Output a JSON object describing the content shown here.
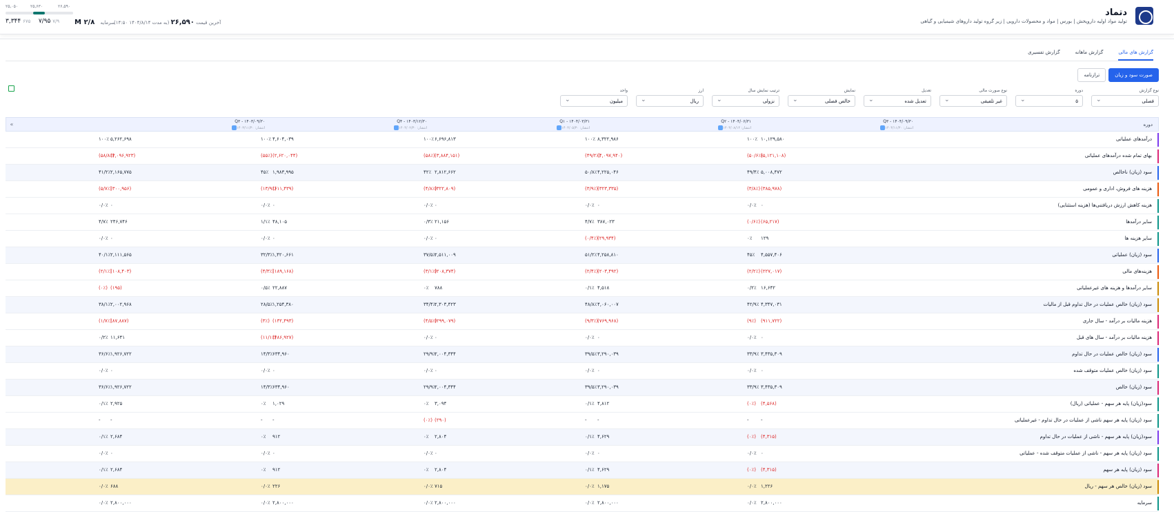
{
  "header": {
    "symbol": "دتماد",
    "company_line": "تولید مواد اولیه داروپخش  |  بورس  |  مواد و محصولات دارویی  |  زیر گروه تولید داروهای شیمیایی و گیاهی",
    "last_price_label": "آخرین قیمت",
    "last_price": "۲۶,۵۹۰",
    "last_price_note": "(به مدت ۱۴۰۴/۸/۱۴ ۱۴:۵۰)",
    "market_cap_label": "سرمایه",
    "market_cap": "۲/۸ M",
    "pe": "۷/۹۵",
    "pe_muted": "۷/۹",
    "eps": "۳,۳۴۴",
    "eps_muted": "۶۷۵",
    "range": {
      "low": "۲۵,۰۵۰",
      "mid": "۲۵,۶۳۰",
      "high": "۲۶,۵۹۰",
      "fill": 0.58
    }
  },
  "tabs": [
    "گزارش های مالی",
    "گزارش ماهانه",
    "گزارش تفسیری"
  ],
  "segment": {
    "active": "صورت سود و زیان",
    "other": "ترازنامه"
  },
  "filters": [
    {
      "label": "نوع گزارش",
      "value": "فصلی"
    },
    {
      "label": "دوره",
      "value": "۵"
    },
    {
      "label": "نوع صورت مالی",
      "value": "غیر تلفیقی"
    },
    {
      "label": "تعدیل",
      "value": "تعدیل شده"
    },
    {
      "label": "نمایش",
      "value": "خالص فصلی"
    },
    {
      "label": "ترتیب نمایش سال",
      "value": "نزولی"
    },
    {
      "label": "ارز",
      "value": "ریال"
    },
    {
      "label": "واحد",
      "value": "میلیون"
    }
  ],
  "table": {
    "period_label": "دوره",
    "columns": [
      {
        "title": "Q۳ - ۱۴۰۴/۰۹/۳۰",
        "sub": "انتشار: ۱۴۰۴/۱۱/۳۰"
      },
      {
        "title": "Q۲ - ۱۴۰۴/۰۶/۳۱",
        "sub": "انتشار: ۱۴۰۴/۰۸/۱۴"
      },
      {
        "title": "Q۱ - ۱۴۰۴/۰۳/۳۱",
        "sub": "انتشار: ۱۴۰۴/۰۵/۳۰"
      },
      {
        "title": "Q۴ - ۱۴۰۳/۱۲/۳۰",
        "sub": "انتشار: ۱۴۰۴/۰۲/۳۰"
      },
      {
        "title": "Q۳ - ۱۴۰۳/۰۹/۳۰",
        "sub": "انتشار: ۱۴۰۳/۱۱/۳۰"
      }
    ],
    "rows": [
      {
        "label": "درآمدهای عملیاتی",
        "accent": "#7c3aed",
        "vals": [
          "۱۰,۱۲۹,۵۸۰",
          "۸,۳۲۲,۹۸۶",
          "۶,۶۹۶,۸۱۳",
          "۴,۶۰۴,۰۳۹",
          "۵,۲۶۲,۶۹۸"
        ],
        "pcts": [
          "۱۰۰٪",
          "۱۰۰٪",
          "۱۰۰٪",
          "۱۰۰٪",
          "۱۰۰٪"
        ],
        "neg": false
      },
      {
        "label": "بهای تمام شده درآمدهای عملیاتی",
        "accent": "#db2777",
        "vals": [
          "(۵,۱۲۱,۱۰۸)",
          "(۴,۰۹۷,۹۴۰)",
          "(۳,۸۸۴,۱۵۱)",
          "(۲,۶۲۰,۰۴۴)",
          "(۳,۰۹۶,۹۲۳)"
        ],
        "pcts": [
          "(۵۰/۶٪)",
          "(۴۹/۲٪)",
          "(۵۸٪)",
          "(۵۵٪)",
          "(۵۸/۸٪)"
        ],
        "neg": true
      },
      {
        "label": "سود (زیان) ناخالص",
        "accent": "#2563eb",
        "vals": [
          "۵,۰۰۸,۴۷۲",
          "۴,۲۲۵,۰۴۶",
          "۲,۸۱۲,۶۶۲",
          "۱,۹۸۳,۹۹۵",
          "۲,۱۶۵,۷۷۵"
        ],
        "pcts": [
          "۴۹/۴٪",
          "۵۰/۸٪",
          "۴۲٪",
          "۴۵٪",
          "۴۱/۲٪"
        ],
        "neg": false,
        "tint": true
      },
      {
        "label": "هزینه های فروش، اداری و عمومی",
        "accent": "#ea580c",
        "vals": [
          "(۳۸۵,۹۷۸)",
          "(۳۲۳,۳۳۵)",
          "(۳۲۲,۸۰۹)",
          "(۶۱۱,۴۳۹)",
          "(۳۰۰,۹۵۶)"
        ],
        "pcts": [
          "(۳/۸٪)",
          "(۳/۹٪)",
          "(۴/۸٪)",
          "(۱۳/۹٪)",
          "(۵/۷٪)"
        ],
        "neg": true
      },
      {
        "label": "هزینه کاهش ارزش دریافتنی‌ها (هزینه استثنایی)",
        "accent": "#0d9488",
        "vals": [
          "۰",
          "۰",
          "۰",
          "۰",
          "۰"
        ],
        "pcts": [
          "۰/۰٪",
          "۰/۰٪",
          "۰/۰٪",
          "۰/۰٪",
          "۰/۰٪"
        ],
        "neg": false
      },
      {
        "label": "سایر درآمدها",
        "accent": "#0d9488",
        "vals": [
          "(۶۵,۲۱۷)",
          "۳۸۷,۰۲۳",
          "۲۱,۱۵۶",
          "۴۸,۱۰۵",
          "۲۴۶,۷۴۶"
        ],
        "pcts": [
          "(۰/۶٪)",
          "۴/۷٪",
          "۰/۳٪",
          "۱/۱٪",
          "۴/۷٪"
        ],
        "neg": "first"
      },
      {
        "label": "سایر هزینه ها",
        "accent": "#0d9488",
        "vals": [
          "۱۲۹",
          "(۲۹,۹۳۴)",
          "۰",
          "۰",
          "۰"
        ],
        "pcts": [
          "۰٪",
          "(۰/۴٪)",
          "۰/۰٪",
          "۰/۰٪",
          "۰/۰٪"
        ],
        "neg": "second"
      },
      {
        "label": "سود (زیان) عملیاتی",
        "accent": "#2563eb",
        "vals": [
          "۴,۵۵۷,۴۰۶",
          "۴,۲۵۸,۸۱۰",
          "۲,۵۱۱,۰۰۹",
          "۱,۴۲۰,۶۶۱",
          "۲,۱۱۱,۵۶۵"
        ],
        "pcts": [
          "۴۵٪",
          "۵۱/۲٪",
          "۳۷/۵٪",
          "۳۲/۳٪",
          "۴۰/۱٪"
        ],
        "neg": false,
        "tint": true
      },
      {
        "label": "هزینه‌های مالی",
        "accent": "#ea580c",
        "vals": [
          "(۲۲۷,۰۱۷)",
          "(۲۰۳,۴۹۲)",
          "(۲۰۸,۳۷۴)",
          "(۱۸۹,۱۶۸)",
          "(۱۰۸,۴۰۳)"
        ],
        "pcts": [
          "(۲/۲٪)",
          "(۲/۴٪)",
          "(۳/۱٪)",
          "(۴/۳٪)",
          "(۲/۱٪)"
        ],
        "neg": true
      },
      {
        "label": "سایر درآمدها و هزینه های غیرعملیاتی",
        "accent": "#ca8a04",
        "vals": [
          "۱۶,۶۴۲",
          "۴,۵۱۸",
          "۷۸۸",
          "۲۲,۸۸۷",
          "(۱۹۵)"
        ],
        "pcts": [
          "۰/۲٪",
          "۰/۱٪",
          "۰٪",
          "۰/۵٪",
          "(۰٪)"
        ],
        "neg": "last"
      },
      {
        "label": "سود (زیان) خالص عملیات در حال تداوم قبل از مالیات",
        "accent": "#ca8a04",
        "vals": [
          "۴,۳۴۷,۰۳۱",
          "۴,۰۶۰,۰۰۷",
          "۲,۳۰۳,۴۲۳",
          "۱,۲۵۴,۳۸۰",
          "۲,۰۰۲,۹۶۸"
        ],
        "pcts": [
          "۴۲/۹٪",
          "۴۸/۸٪",
          "۳۴/۴٪",
          "۲۸/۵٪",
          "۳۸/۱٪"
        ],
        "neg": false,
        "tint": true
      },
      {
        "label": "هزینه مالیات بر درآمد - سال جاری",
        "accent": "#db2777",
        "vals": [
          "(۹۱۱,۷۲۲)",
          "(۷۶۹,۹۶۸)",
          "(۲۹۹,۰۷۹)",
          "(۱۳۲,۴۹۳)",
          "(۸۷,۸۸۷)"
        ],
        "pcts": [
          "(۹٪)",
          "(۹/۳٪)",
          "(۴/۵٪)",
          "(۳٪)",
          "(۱/۷٪)"
        ],
        "neg": true
      },
      {
        "label": "هزینه مالیات بر درآمد - سال های قبل",
        "accent": "#db2777",
        "vals": [
          "۰",
          "۰",
          "۰",
          "(۴۸۶,۹۲۷)",
          "۱۱,۶۴۱"
        ],
        "pcts": [
          "۰/۰٪",
          "۰/۰٪",
          "۰/۰٪",
          "(۱۱/۱٪)",
          "۰/۲٪"
        ],
        "neg": "fourth"
      },
      {
        "label": "سود (زیان) خالص عملیات در حال تداوم",
        "accent": "#2563eb",
        "vals": [
          "۳,۴۳۵,۳۰۹",
          "۳,۲۹۰,۰۳۹",
          "۲,۰۰۴,۳۴۴",
          "۶۳۴,۹۶۰",
          "۱,۹۲۶,۷۲۲"
        ],
        "pcts": [
          "۳۳/۹٪",
          "۳۹/۵٪",
          "۲۹/۹٪",
          "۱۴/۳٪",
          "۳۶/۶٪"
        ],
        "neg": false,
        "tint": true
      },
      {
        "label": "سود (زیان) خالص عملیات متوقف شده",
        "accent": "#0d9488",
        "vals": [
          "۰",
          "۰",
          "۰",
          "۰",
          "۰"
        ],
        "pcts": [
          "۰/۰٪",
          "۰/۰٪",
          "۰/۰٪",
          "۰/۰٪",
          "۰/۰٪"
        ],
        "neg": false
      },
      {
        "label": "سود (زیان) خالص",
        "accent": "#db2777",
        "vals": [
          "۳,۴۳۵,۳۰۹",
          "۳,۲۹۰,۰۳۹",
          "۲,۰۰۴,۳۴۴",
          "۶۳۴,۹۶۰",
          "۱,۹۲۶,۷۲۲"
        ],
        "pcts": [
          "۳۳/۹٪",
          "۳۹/۵٪",
          "۲۹/۹٪",
          "۱۴/۳٪",
          "۳۶/۶٪"
        ],
        "neg": false,
        "tint": true
      },
      {
        "label": "سود(زیان) پایه هر سهم - عملیاتی (ریال)",
        "accent": "#0d9488",
        "vals": [
          "(۴,۵۶۸)",
          "۴,۸۱۲",
          "۳,۰۹۴",
          "۱,۰۲۹",
          "۲,۹۲۵"
        ],
        "pcts": [
          "(۰٪)",
          "۰/۱٪",
          "۰٪",
          "۰٪",
          "۰/۱٪"
        ],
        "neg": "first"
      },
      {
        "label": "سود (زیان) پایه هر سهم ناشی از عملیات در حال تداوم - غیرعملیاتی",
        "accent": "#0d9488",
        "vals": [
          "-",
          "-",
          "(۲۹۰)",
          "-",
          "-"
        ],
        "pcts": [
          "-",
          "-",
          "(۰٪)",
          "-",
          "-"
        ],
        "neg": "third"
      },
      {
        "label": "سود(زیان) پایه هر سهم - ناشی از عملیات در حال تداوم",
        "accent": "#7c3aed",
        "vals": [
          "(۴,۳۱۵)",
          "۴,۶۲۹",
          "۲,۸۰۴",
          "۹۱۲",
          "۲,۶۸۴"
        ],
        "pcts": [
          "(۰٪)",
          "۰/۱٪",
          "۰٪",
          "۰٪",
          "۰/۱٪"
        ],
        "neg": "first",
        "tint": true
      },
      {
        "label": "سود (زیان) پایه هر سهم - ناشی از عملیات متوقف شده - عملیاتی",
        "accent": "#0d9488",
        "vals": [
          "۰",
          "۰",
          "۰",
          "۰",
          "۰"
        ],
        "pcts": [
          "۰/۰٪",
          "۰/۰٪",
          "۰/۰٪",
          "۰/۰٪",
          "۰/۰٪"
        ],
        "neg": false
      },
      {
        "label": "سود (زیان) پایه هر سهم",
        "accent": "#db2777",
        "vals": [
          "(۴,۳۱۵)",
          "۴,۶۲۹",
          "۲,۸۰۴",
          "۹۱۲",
          "۲,۶۸۴"
        ],
        "pcts": [
          "(۰٪)",
          "۰/۱٪",
          "۰٪",
          "۰٪",
          "۰/۱٪"
        ],
        "neg": "first",
        "tint": true
      },
      {
        "label": "سود (زیان) خالص هر سهم - ریال",
        "accent": "#ca8a04",
        "vals": [
          "۱,۲۲۶",
          "۱,۱۷۵",
          "۷۱۵",
          "۲۲۶",
          "۶۸۸"
        ],
        "pcts": [
          "۰/۰٪",
          "۰/۰٪",
          "۰/۰٪",
          "۰/۰٪",
          "۰/۰٪"
        ],
        "neg": false,
        "gold": true
      },
      {
        "label": "سرمایه",
        "accent": "#0d9488",
        "vals": [
          "۲,۸۰۰,۰۰۰",
          "۲,۸۰۰,۰۰۰",
          "۲,۸۰۰,۰۰۰",
          "۲,۸۰۰,۰۰۰",
          "۲,۸۰۰,۰۰۰"
        ],
        "pcts": [
          "۰/۰٪",
          "۰/۰٪",
          "۰/۰٪",
          "۰/۰٪",
          "۰/۰٪"
        ],
        "neg": false
      }
    ]
  }
}
